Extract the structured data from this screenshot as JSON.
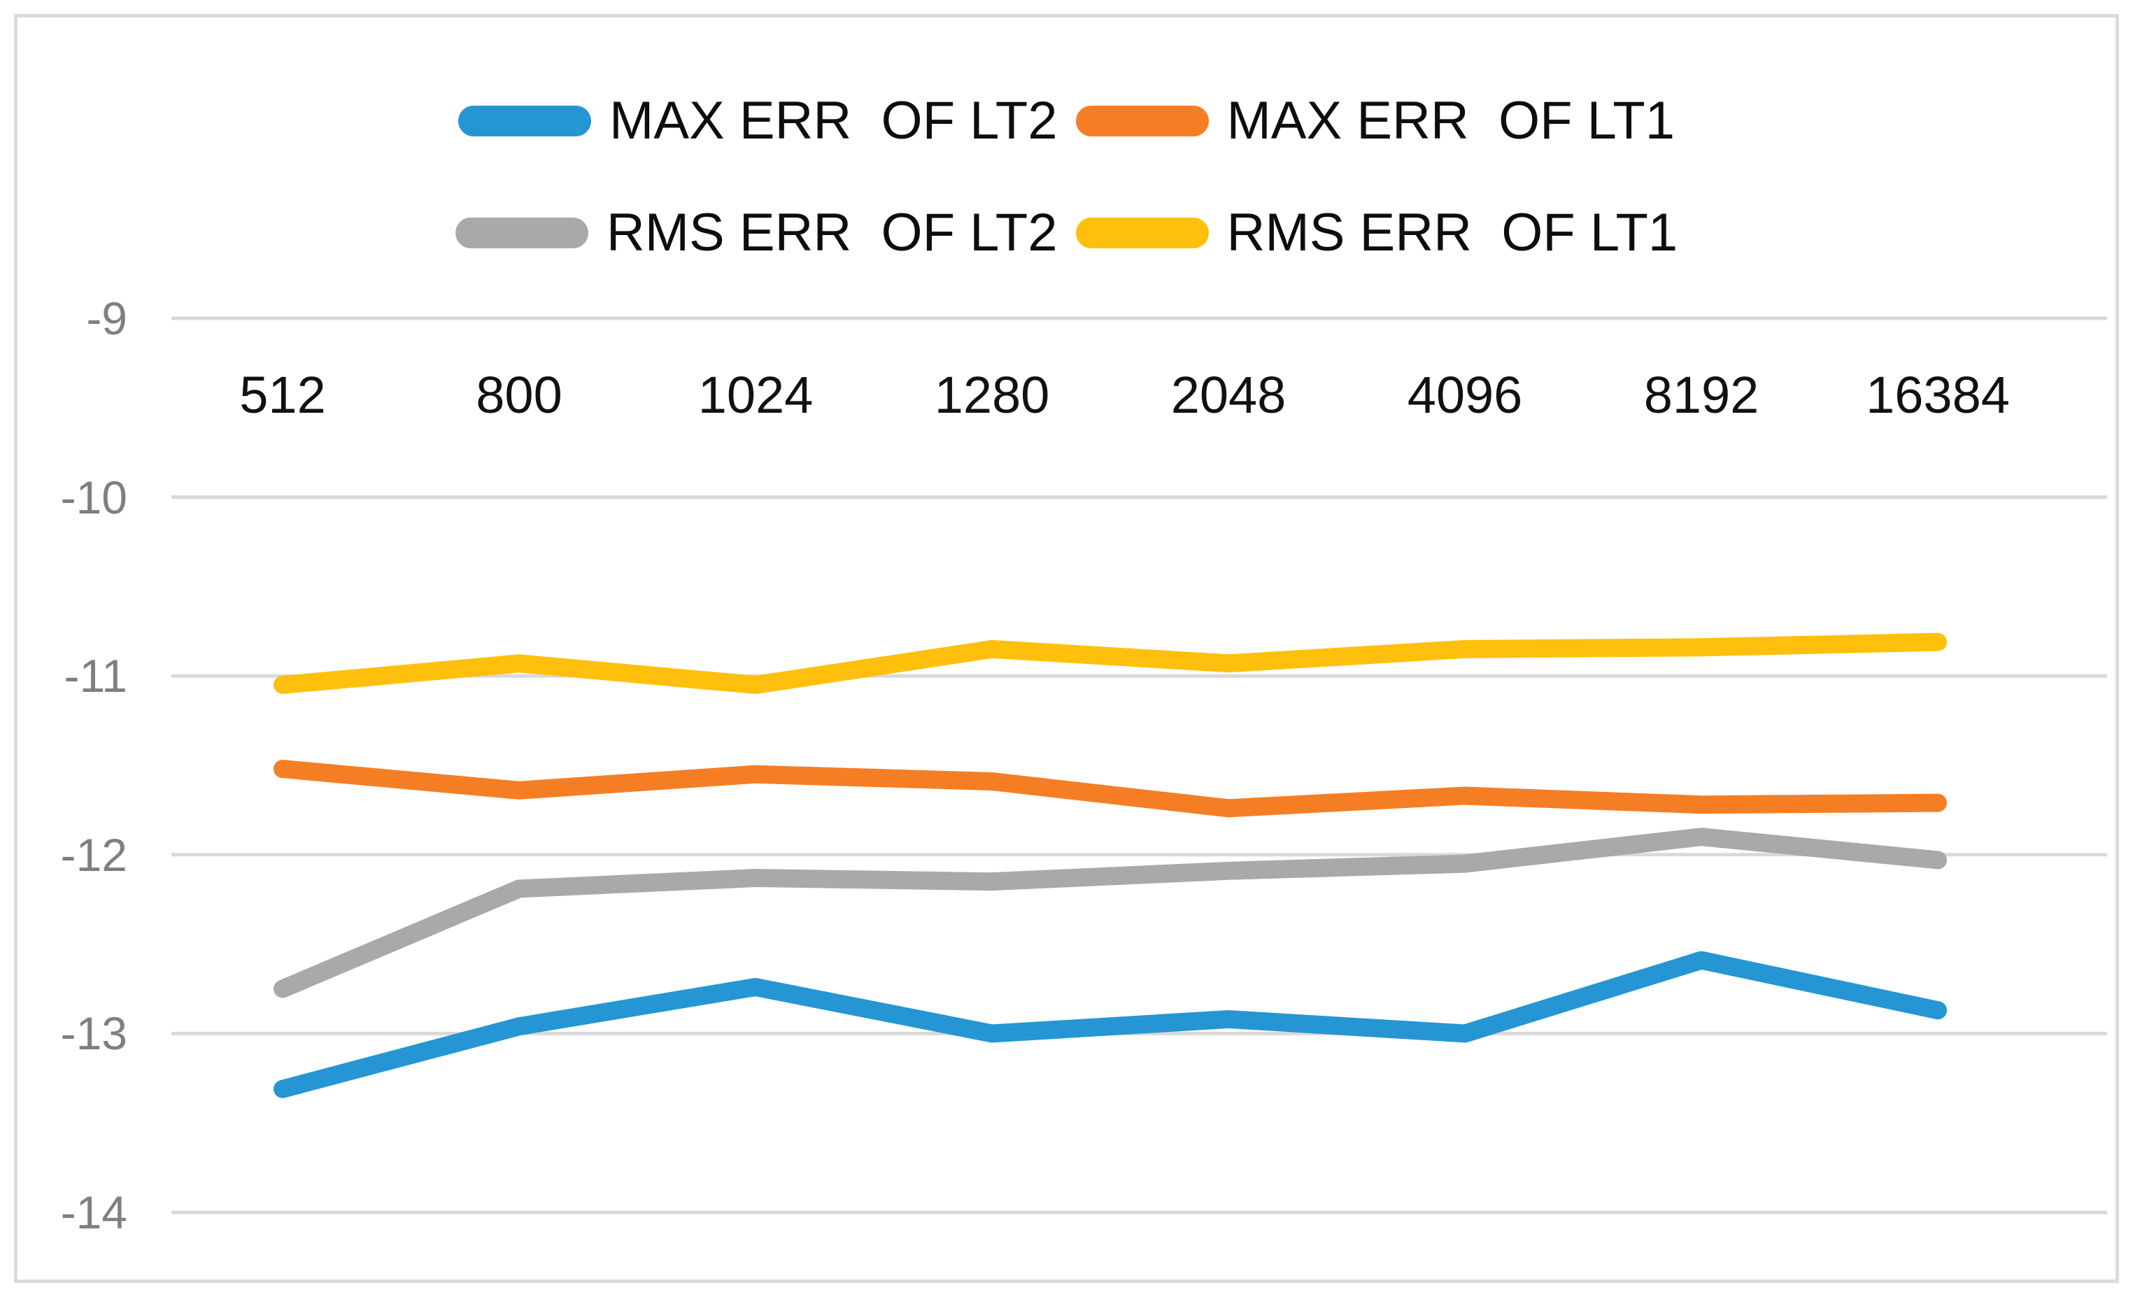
{
  "chart_data": {
    "type": "line",
    "title": "",
    "xlabel": "",
    "ylabel": "",
    "categories": [
      "512",
      "800",
      "1024",
      "1280",
      "2048",
      "4096",
      "8192",
      "16384"
    ],
    "series": [
      {
        "name": "MAX ERR  OF LT2",
        "color": "#2596D3",
        "values": [
          -13.31,
          -12.96,
          -12.74,
          -13.0,
          -12.92,
          -13.0,
          -12.59,
          -12.87
        ]
      },
      {
        "name": "MAX ERR  OF LT1",
        "color": "#F57E25",
        "values": [
          -11.52,
          -11.64,
          -11.55,
          -11.59,
          -11.74,
          -11.67,
          -11.72,
          -11.71
        ]
      },
      {
        "name": "RMS ERR  OF LT2",
        "color": "#A9A9A9",
        "values": [
          -12.75,
          -12.19,
          -12.13,
          -12.15,
          -12.09,
          -12.05,
          -11.9,
          -12.03
        ]
      },
      {
        "name": "RMS ERR  OF LT1",
        "color": "#FFC00D",
        "values": [
          -11.05,
          -10.93,
          -11.05,
          -10.85,
          -10.93,
          -10.85,
          -10.84,
          -10.81
        ]
      }
    ],
    "y_ticks": [
      -9,
      -10,
      -11,
      -12,
      -13,
      -14
    ],
    "y_tick_labels": [
      "-9",
      "-10",
      "-11",
      "-12",
      "-13",
      "-14"
    ],
    "ylim": [
      -14,
      -9
    ],
    "grid": "horizontal",
    "legend_position": "top",
    "legend_rows": [
      [
        0,
        1
      ],
      [
        2,
        3
      ]
    ],
    "colors": {
      "gridline": "#D9D9D9",
      "frame_border": "#DBDBDB",
      "y_tick_text": "#7F7F7F",
      "x_tick_text": "#111111",
      "legend_text": "#0d0d0d"
    }
  }
}
